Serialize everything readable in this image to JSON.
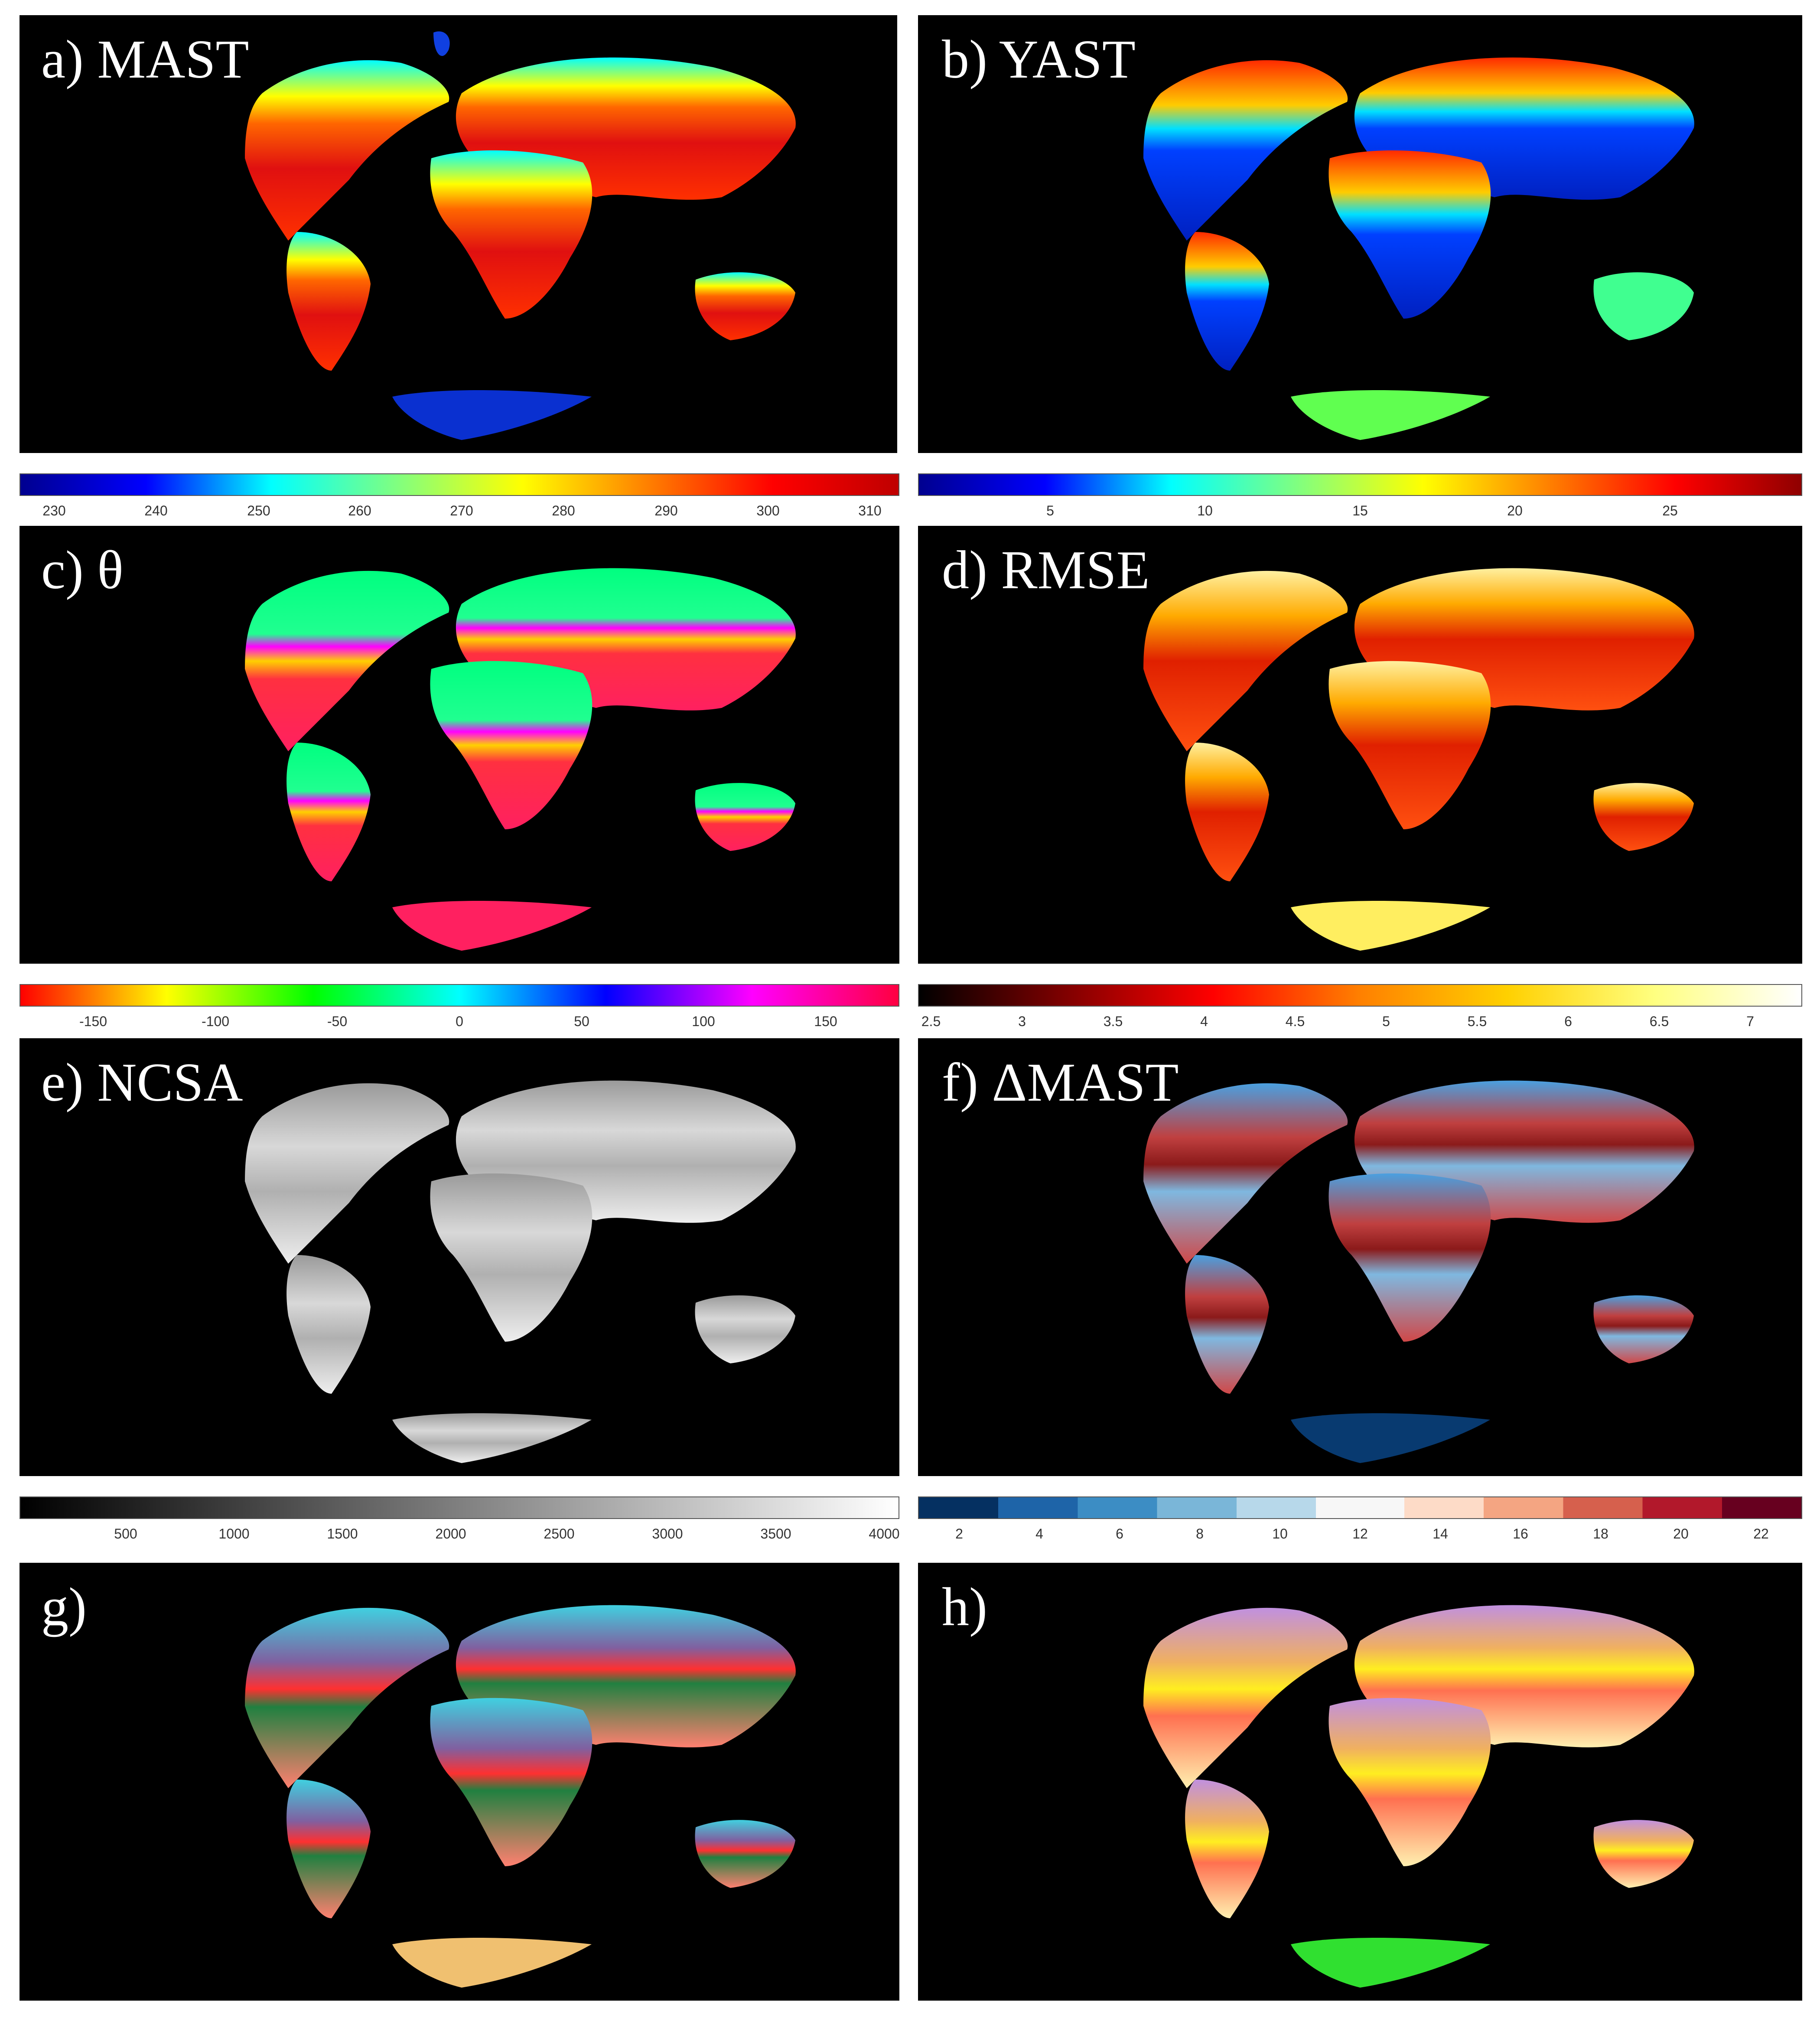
{
  "panels": [
    {
      "label": "a) MAST"
    },
    {
      "label": "b) YAST"
    },
    {
      "label": "c) θ"
    },
    {
      "label": "d) RMSE"
    },
    {
      "label": "e) NCSA"
    },
    {
      "label": "f) ΔMAST"
    },
    {
      "label": "g)"
    },
    {
      "label": "h)"
    }
  ],
  "colorbars": [
    {
      "name": "MAST",
      "colormap": "jet",
      "ticks": [
        "230",
        "240",
        "250",
        "260",
        "270",
        "280",
        "290",
        "300",
        "310"
      ]
    },
    {
      "name": "YAST",
      "colormap": "jet",
      "ticks": [
        "5",
        "10",
        "15",
        "20",
        "25"
      ]
    },
    {
      "name": "theta",
      "colormap": "hsv",
      "ticks": [
        "-150",
        "-100",
        "-50",
        "0",
        "50",
        "100",
        "150"
      ]
    },
    {
      "name": "RMSE",
      "colormap": "hot",
      "ticks": [
        "2.5",
        "3",
        "3.5",
        "4",
        "4.5",
        "5",
        "5.5",
        "6",
        "6.5",
        "7"
      ]
    },
    {
      "name": "NCSA",
      "colormap": "gray",
      "ticks": [
        "500",
        "1000",
        "1500",
        "2000",
        "2500",
        "3000",
        "3500",
        "4000"
      ]
    },
    {
      "name": "dMAST",
      "colormap": "diverging-blue-red",
      "ticks": [
        "2",
        "4",
        "6",
        "8",
        "10",
        "12",
        "14",
        "16",
        "18",
        "20",
        "22"
      ]
    }
  ]
}
